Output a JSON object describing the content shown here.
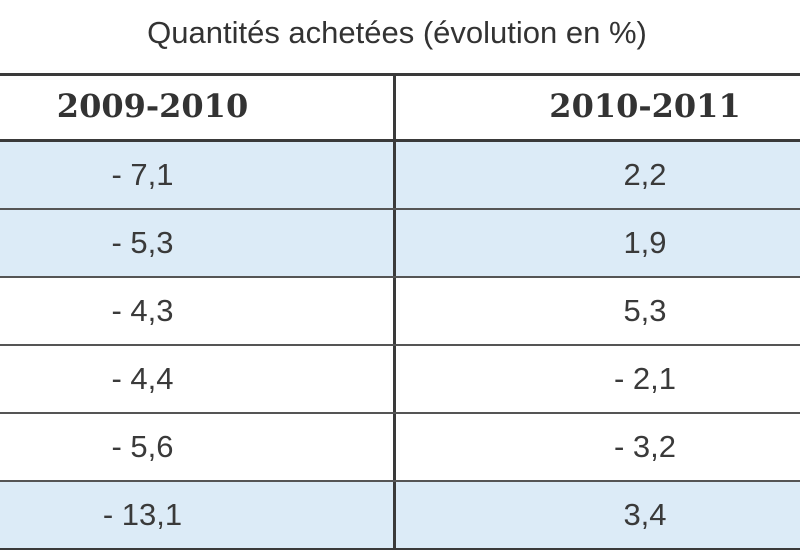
{
  "table": {
    "title": "Quantités achetées (évolution en %)",
    "headers": [
      "2009-2010",
      "2010-2011"
    ],
    "rows": [
      {
        "a": "- 7,1",
        "b": "2,2",
        "shaded": true
      },
      {
        "a": "- 5,3",
        "b": "1,9",
        "shaded": true
      },
      {
        "a": "- 4,3",
        "b": "5,3",
        "shaded": false
      },
      {
        "a": "- 4,4",
        "b": "- 2,1",
        "shaded": false
      },
      {
        "a": "- 5,6",
        "b": "- 3,2",
        "shaded": false
      },
      {
        "a": "- 13,1",
        "b": "3,4",
        "shaded": true
      }
    ]
  },
  "colors": {
    "shaded_row": "#dcebf7",
    "grid_line": "#3a3a3a",
    "text": "#333333"
  }
}
